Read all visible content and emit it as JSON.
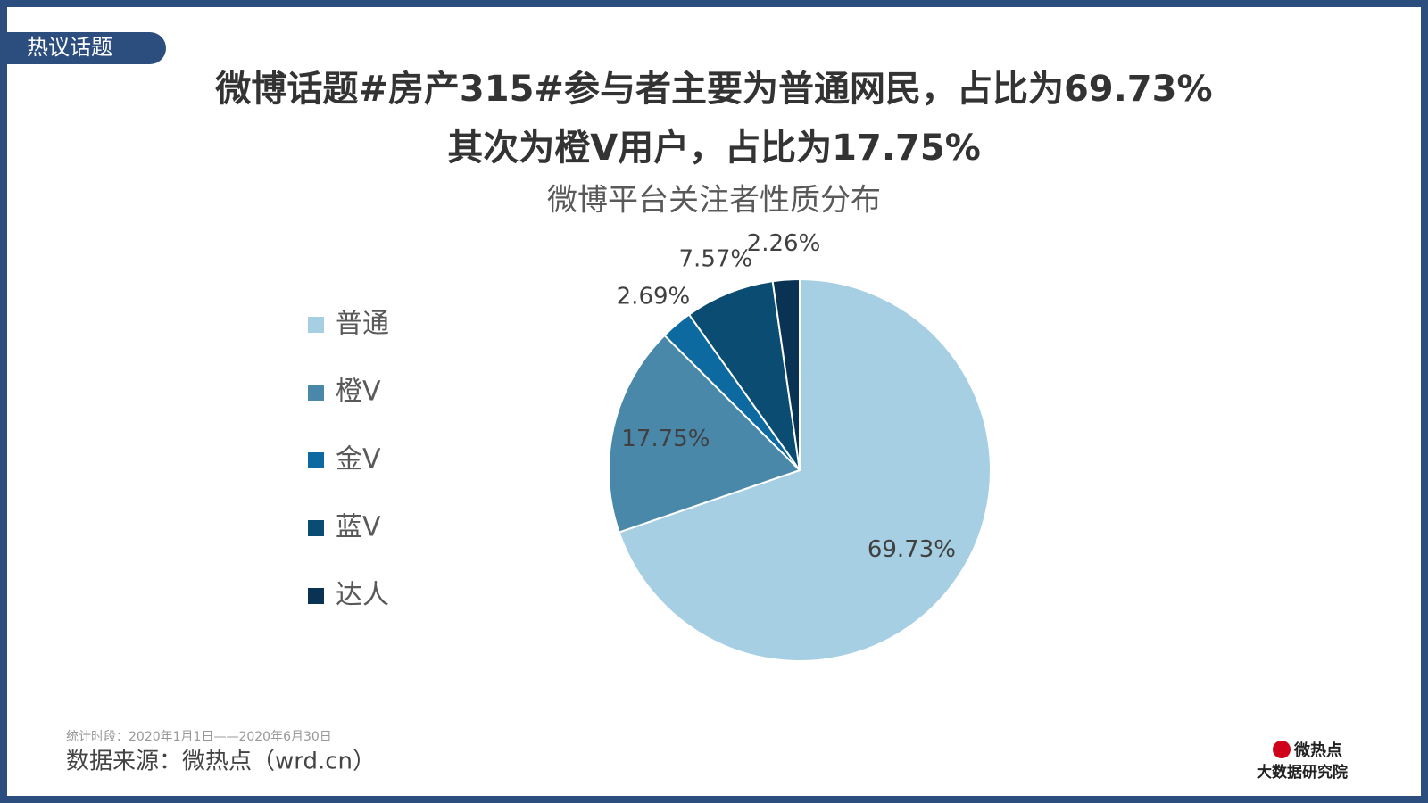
{
  "header": {
    "tag": "热议话题",
    "title_lines": [
      "微博话题#房产315#参与者主要为普通网民，占比为69.73%",
      "其次为橙V用户，占比为17.75%"
    ]
  },
  "chart_data": {
    "type": "pie",
    "title": "微博平台关注者性质分布",
    "categories": [
      "普通",
      "橙V",
      "金V",
      "蓝V",
      "达人"
    ],
    "values": [
      69.73,
      17.75,
      2.69,
      7.57,
      2.26
    ],
    "value_labels": [
      "69.73%",
      "17.75%",
      "2.69%",
      "7.57%",
      "2.26%"
    ],
    "colors": [
      "#a6cfe4",
      "#4a88aa",
      "#0c6aa0",
      "#0b4c72",
      "#0a3252"
    ],
    "legend": "left"
  },
  "footer": {
    "period": "统计时段：2020年1月1日——2020年6月30日",
    "source": "数据来源：微热点（wrd.cn）",
    "logo": "微热点",
    "logo_sub": "大数据研究院"
  }
}
